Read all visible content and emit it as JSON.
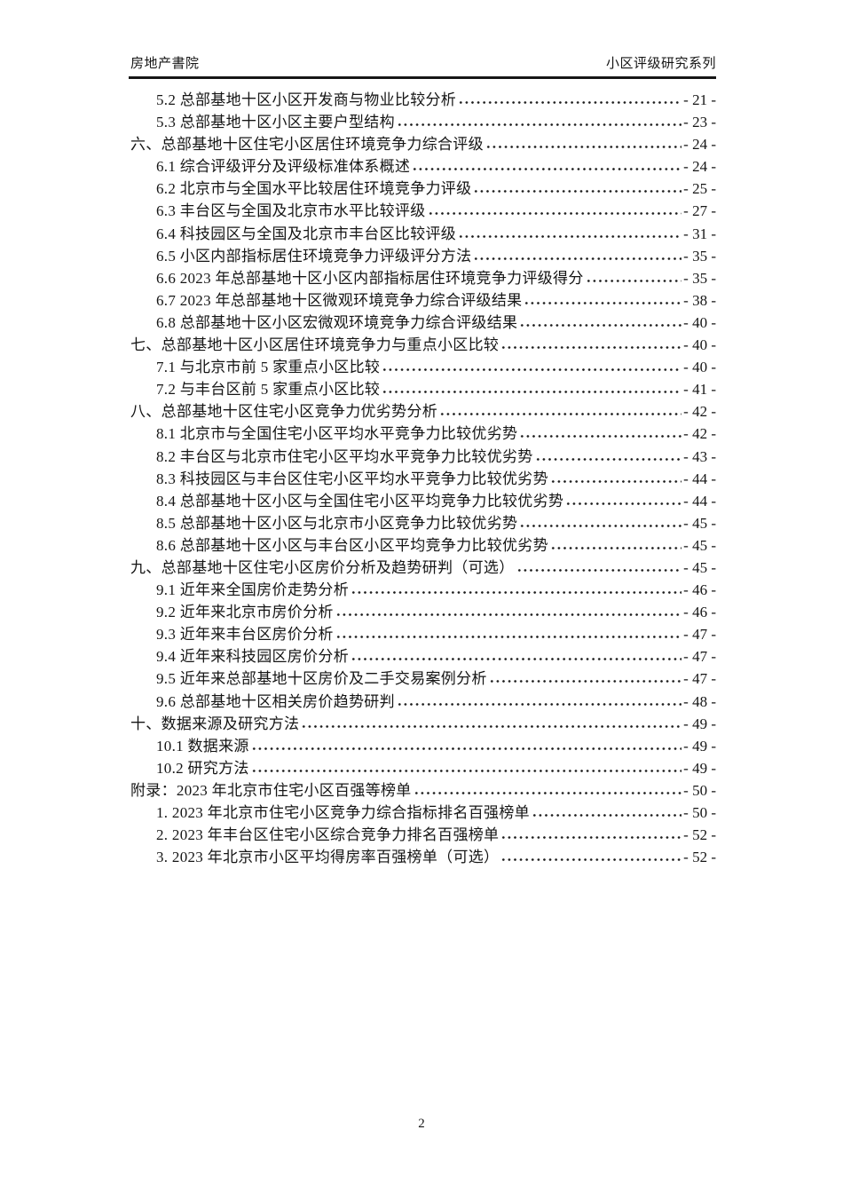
{
  "header": {
    "left": "房地产書院",
    "right": "小区评级研究系列"
  },
  "toc": {
    "entries": [
      {
        "label": "5.2 总部基地十区小区开发商与物业比较分析",
        "page": "- 21 -",
        "level": 2
      },
      {
        "label": "5.3 总部基地十区小区主要户型结构",
        "page": "- 23 -",
        "level": 2
      },
      {
        "label": "六、总部基地十区住宅小区居住环境竞争力综合评级",
        "page": "- 24 -",
        "level": 1
      },
      {
        "label": "6.1 综合评级评分及评级标准体系概述",
        "page": "- 24 -",
        "level": 2
      },
      {
        "label": "6.2 北京市与全国水平比较居住环境竞争力评级",
        "page": "- 25 -",
        "level": 2
      },
      {
        "label": "6.3 丰台区与全国及北京市水平比较评级",
        "page": "- 27 -",
        "level": 2
      },
      {
        "label": "6.4 科技园区与全国及北京市丰台区比较评级",
        "page": "- 31 -",
        "level": 2
      },
      {
        "label": "6.5 小区内部指标居住环境竞争力评级评分方法",
        "page": "- 35 -",
        "level": 2
      },
      {
        "label": "6.6 2023 年总部基地十区小区内部指标居住环境竞争力评级得分",
        "page": "- 35 -",
        "level": 2
      },
      {
        "label": "6.7 2023 年总部基地十区微观环境竞争力综合评级结果",
        "page": "- 38 -",
        "level": 2
      },
      {
        "label": "6.8 总部基地十区小区宏微观环境竞争力综合评级结果",
        "page": "- 40 -",
        "level": 2
      },
      {
        "label": "七、总部基地十区小区居住环境竞争力与重点小区比较",
        "page": "- 40 -",
        "level": 1
      },
      {
        "label": "7.1 与北京市前 5 家重点小区比较",
        "page": "- 40 -",
        "level": 2
      },
      {
        "label": "7.2 与丰台区前 5 家重点小区比较",
        "page": "- 41 -",
        "level": 2
      },
      {
        "label": "八、总部基地十区住宅小区竞争力优劣势分析",
        "page": "- 42 -",
        "level": 1
      },
      {
        "label": "8.1 北京市与全国住宅小区平均水平竞争力比较优劣势",
        "page": "- 42 -",
        "level": 2
      },
      {
        "label": "8.2 丰台区与北京市住宅小区平均水平竞争力比较优劣势",
        "page": "- 43 -",
        "level": 2
      },
      {
        "label": "8.3 科技园区与丰台区住宅小区平均水平竞争力比较优劣势",
        "page": "- 44 -",
        "level": 2
      },
      {
        "label": "8.4 总部基地十区小区与全国住宅小区平均竞争力比较优劣势",
        "page": "- 44 -",
        "level": 2
      },
      {
        "label": "8.5 总部基地十区小区与北京市小区竞争力比较优劣势",
        "page": "- 45 -",
        "level": 2
      },
      {
        "label": "8.6 总部基地十区小区与丰台区小区平均竞争力比较优劣势",
        "page": "- 45 -",
        "level": 2
      },
      {
        "label": "九、总部基地十区住宅小区房价分析及趋势研判（可选）",
        "page": "- 45 -",
        "level": 1
      },
      {
        "label": "9.1 近年来全国房价走势分析",
        "page": "- 46 -",
        "level": 2
      },
      {
        "label": "9.2 近年来北京市房价分析",
        "page": "- 46 -",
        "level": 2
      },
      {
        "label": "9.3 近年来丰台区房价分析",
        "page": "- 47 -",
        "level": 2
      },
      {
        "label": "9.4 近年来科技园区房价分析",
        "page": "- 47 -",
        "level": 2
      },
      {
        "label": "9.5 近年来总部基地十区房价及二手交易案例分析",
        "page": "- 47 -",
        "level": 2
      },
      {
        "label": "9.6 总部基地十区相关房价趋势研判",
        "page": "- 48 -",
        "level": 2
      },
      {
        "label": "十、数据来源及研究方法",
        "page": "- 49 -",
        "level": 1
      },
      {
        "label": "10.1 数据来源",
        "page": "- 49 -",
        "level": 2
      },
      {
        "label": "10.2 研究方法",
        "page": "- 49 -",
        "level": 2
      },
      {
        "label": "附录：2023 年北京市住宅小区百强等榜单",
        "page": "- 50 -",
        "level": 1
      },
      {
        "label": "1. 2023 年北京市住宅小区竞争力综合指标排名百强榜单",
        "page": "- 50 -",
        "level": 2
      },
      {
        "label": "2. 2023 年丰台区住宅小区综合竞争力排名百强榜单",
        "page": "- 52 -",
        "level": 2
      },
      {
        "label": "3. 2023 年北京市小区平均得房率百强榜单（可选）",
        "page": "- 52 -",
        "level": 2
      }
    ]
  },
  "footer": {
    "page_number": "2"
  }
}
